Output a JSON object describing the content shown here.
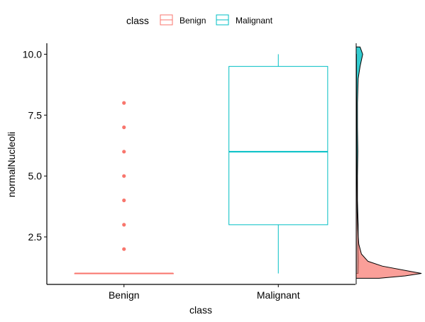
{
  "legend": {
    "title": "class",
    "items": [
      {
        "label": "Benign",
        "color": "#F8766D"
      },
      {
        "label": "Malignant",
        "color": "#00BFC4"
      }
    ]
  },
  "chart_data": {
    "type": "boxplot",
    "xlabel": "class",
    "ylabel": "normalNucleoli",
    "categories": [
      "Benign",
      "Malignant"
    ],
    "yticks": [
      2.5,
      5.0,
      7.5,
      10.0
    ],
    "ytick_labels": [
      "2.5",
      "5.0",
      "7.5",
      "10.0"
    ],
    "ylim": [
      0.55,
      10.45
    ],
    "grid": false,
    "legend_position": "top",
    "series": [
      {
        "name": "Benign",
        "color": "#F8766D",
        "min": 1,
        "q1": 1,
        "median": 1,
        "q3": 1,
        "max": 1,
        "outliers": [
          2,
          3,
          4,
          5,
          6,
          7,
          8
        ]
      },
      {
        "name": "Malignant",
        "color": "#00BFC4",
        "min": 1,
        "q1": 3,
        "median": 6,
        "q3": 9.5,
        "max": 10,
        "outliers": []
      }
    ],
    "marginal_density": {
      "side": "right",
      "series": [
        {
          "name": "Benign",
          "color": "#F8766D",
          "y": [
            0.8,
            0.9,
            1.0,
            1.1,
            1.3,
            1.5,
            1.8,
            2.2,
            2.8,
            3.5,
            5,
            7,
            10
          ],
          "density": [
            0.35,
            0.75,
            1.0,
            0.8,
            0.4,
            0.18,
            0.08,
            0.04,
            0.025,
            0.015,
            0.01,
            0.006,
            0.003
          ]
        },
        {
          "name": "Malignant",
          "color": "#00BFC4",
          "y": [
            1,
            1.5,
            2,
            3,
            4,
            5,
            6,
            7,
            8,
            9,
            9.5,
            10,
            10.3
          ],
          "density": [
            0.03,
            0.035,
            0.03,
            0.03,
            0.02,
            0.02,
            0.025,
            0.02,
            0.02,
            0.03,
            0.06,
            0.1,
            0.06
          ]
        }
      ]
    }
  }
}
